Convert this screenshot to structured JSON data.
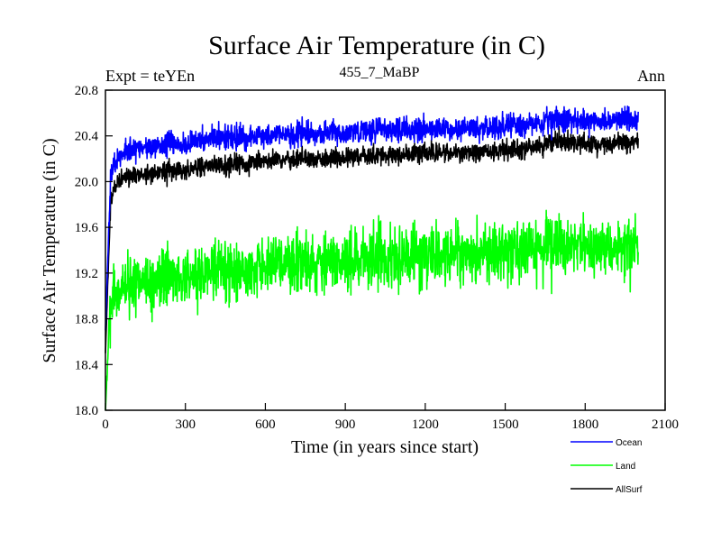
{
  "chart_data": {
    "type": "line",
    "title": "Surface Air Temperature (in C)",
    "subtitle": "455_7_MaBP",
    "left_note": "Expt = teYEn",
    "right_note": "Ann",
    "xlabel": "Time (in years since start)",
    "ylabel": "Surface Air Temperature (in C)",
    "xlim": [
      0,
      2100
    ],
    "ylim": [
      18.0,
      20.8
    ],
    "x_ticks": [
      0,
      300,
      600,
      900,
      1200,
      1500,
      1800,
      2100
    ],
    "y_ticks": [
      18.0,
      18.4,
      18.8,
      19.2,
      19.6,
      20.0,
      20.4,
      20.8
    ],
    "x_tick_labels": [
      "0",
      "300",
      "600",
      "900",
      "1200",
      "1500",
      "1800",
      "2100"
    ],
    "y_tick_labels": [
      "18.0",
      "18.4",
      "18.8",
      "19.2",
      "19.6",
      "20.0",
      "20.4",
      "20.8"
    ],
    "grid": false,
    "legend_position": "bottom-right",
    "series": [
      {
        "name": "Ocean",
        "color": "#0000ff",
        "x": [
          0,
          20,
          50,
          100,
          200,
          300,
          400,
          500,
          600,
          800,
          1000,
          1200,
          1400,
          1600,
          1700,
          1800,
          2000
        ],
        "y": [
          18.7,
          20.05,
          20.24,
          20.28,
          20.31,
          20.33,
          20.37,
          20.39,
          20.4,
          20.42,
          20.44,
          20.46,
          20.47,
          20.5,
          20.55,
          20.53,
          20.55
        ],
        "noise": 0.09
      },
      {
        "name": "Land",
        "color": "#00ff00",
        "x": [
          0,
          20,
          50,
          100,
          200,
          300,
          400,
          500,
          600,
          800,
          1000,
          1200,
          1400,
          1600,
          1700,
          1800,
          2000
        ],
        "y": [
          18.0,
          18.95,
          19.07,
          19.1,
          19.13,
          19.16,
          19.2,
          19.23,
          19.26,
          19.3,
          19.33,
          19.36,
          19.38,
          19.4,
          19.45,
          19.43,
          19.46
        ],
        "noise": 0.22
      },
      {
        "name": "AllSurf",
        "color": "#000000",
        "x": [
          0,
          20,
          50,
          100,
          200,
          300,
          400,
          500,
          600,
          800,
          1000,
          1200,
          1400,
          1600,
          1700,
          1800,
          2000
        ],
        "y": [
          18.5,
          19.85,
          20.03,
          20.05,
          20.08,
          20.1,
          20.13,
          20.16,
          20.18,
          20.2,
          20.22,
          20.25,
          20.26,
          20.29,
          20.36,
          20.33,
          20.35
        ],
        "noise": 0.07
      }
    ]
  }
}
